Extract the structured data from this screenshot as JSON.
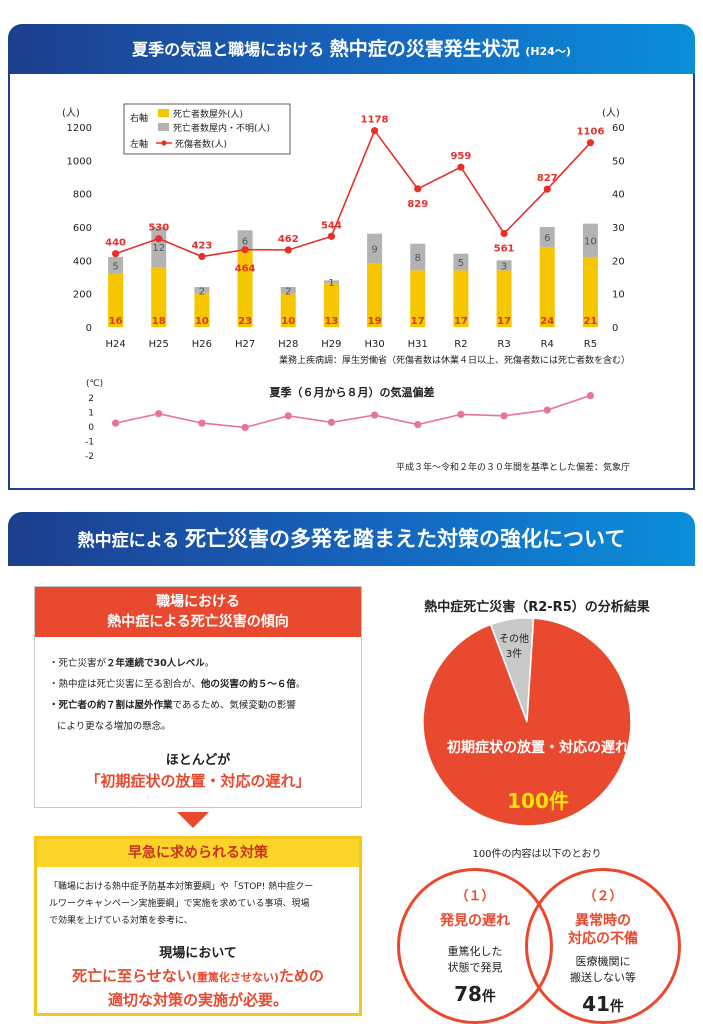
{
  "section1": {
    "title_part1": "夏季の気温と職場における",
    "title_part2": "熱中症の災害発生状況",
    "title_part3": "(H24〜)"
  },
  "chart_data": [
    {
      "type": "bar",
      "categories": [
        "H24",
        "H25",
        "H26",
        "H27",
        "H28",
        "H29",
        "H30",
        "H31",
        "R2",
        "R3",
        "R4",
        "R5"
      ],
      "left_axis_unit": "(人)",
      "right_axis_unit": "(人)",
      "ylim_left": [
        0,
        1200
      ],
      "yticks_left": [
        0,
        200,
        400,
        600,
        800,
        1000,
        1200
      ],
      "ylim_right": [
        0,
        60
      ],
      "yticks_right": [
        0,
        10,
        20,
        30,
        40,
        50,
        60
      ],
      "legend": {
        "right_axis_label": "右軸",
        "left_axis_label": "左軸",
        "series_outdoor": "死亡者数屋外(人)",
        "series_indoor": "死亡者数屋内・不明(人)",
        "series_casualties": "死傷者数(人)"
      },
      "series": [
        {
          "name": "死亡者数屋外(人)",
          "axis": "right",
          "color": "#f6c600",
          "values": [
            16,
            18,
            10,
            23,
            10,
            13,
            19,
            17,
            17,
            17,
            24,
            21
          ]
        },
        {
          "name": "死亡者数屋内・不明(人)",
          "axis": "right",
          "color": "#b3b3b3",
          "values": [
            5,
            12,
            2,
            6,
            2,
            1,
            9,
            8,
            5,
            3,
            6,
            10
          ]
        },
        {
          "name": "死傷者数(人)",
          "axis": "left",
          "color": "#e8302b",
          "values": [
            440,
            530,
            423,
            464,
            462,
            544,
            1178,
            829,
            959,
            561,
            827,
            1106
          ]
        }
      ],
      "source": "業務上疾病調：厚生労働省（死傷者数は休業４日以上、死傷者数には死亡者数を含む）"
    },
    {
      "type": "line",
      "title": "夏季（６月から８月）の気温偏差",
      "unit": "(℃)",
      "categories": [
        "H24",
        "H25",
        "H26",
        "H27",
        "H28",
        "H29",
        "H30",
        "H31",
        "R2",
        "R3",
        "R4",
        "R5"
      ],
      "ylim": [
        -2,
        2
      ],
      "yticks": [
        2,
        1,
        0,
        -1,
        -2
      ],
      "series": [
        {
          "color": "#e8739f",
          "values": [
            0.2,
            0.85,
            0.2,
            -0.1,
            0.7,
            0.25,
            0.75,
            0.1,
            0.8,
            0.7,
            1.1,
            2.1
          ]
        }
      ],
      "source": "平成３年〜令和２年の３０年間を基準とした偏差：気象庁"
    },
    {
      "type": "pie",
      "title": "熱中症死亡災害（R2-R5）の分析結果",
      "slices": [
        {
          "label": "初期症状の放置・対応の遅れ",
          "value": 100,
          "value_label": "100件",
          "color": "#e8492f"
        },
        {
          "label": "その他",
          "value": 3,
          "value_label": "3件",
          "color": "#c9c9c9"
        }
      ]
    }
  ],
  "section2": {
    "title_part1": "熱中症による",
    "title_part2": "死亡災害の多発を踏まえた対策の強化について"
  },
  "trend_box": {
    "heading_line1": "職場における",
    "heading_line2": "熱中症による死亡災害の傾向",
    "bullet1_pre": "・死亡災害が",
    "bullet1_bold": "２年連続で30人レベル",
    "bullet1_post": "。",
    "bullet2_pre": "・熱中症は死亡災害に至る割合が、",
    "bullet2_bold": "他の災害の約５〜６倍",
    "bullet2_post": "。",
    "bullet3_bold": "・死亡者の約７割は屋外作業",
    "bullet3_post": "であるため、気候変動の影響",
    "bullet3_line2": "により更なる増加の懸念。",
    "summary": "ほとんどが",
    "summary_red": "「初期症状の放置・対応の遅れ」"
  },
  "urgent_box": {
    "heading": "早急に求められる対策",
    "body_line1": "「職場における熱中症予防基本対策要綱」や「STOP! 熱中症クー",
    "body_line2": "ルワークキャンペーン実施要綱」で実施を求めている事項、現場",
    "body_line3": "で効果を上げている対策を参考に、",
    "line_bold": "現場において",
    "red_part1": "死亡に至らせない",
    "red_part_small": "(重篤化させない)",
    "red_part2": "ための",
    "red_line2": "適切な対策の実施が必要。"
  },
  "breakdown": {
    "note": "100件の内容は以下のとおり",
    "items": [
      {
        "num": "（１）",
        "title": "発見の遅れ",
        "title2": "",
        "desc1": "重篤化した",
        "desc2": "状態で発見",
        "count": "78",
        "unit": "件"
      },
      {
        "num": "（２）",
        "title": "異常時の",
        "title2": "対応の不備",
        "desc1": "医療機関に",
        "desc2": "搬送しない等",
        "count": "41",
        "unit": "件"
      }
    ]
  }
}
